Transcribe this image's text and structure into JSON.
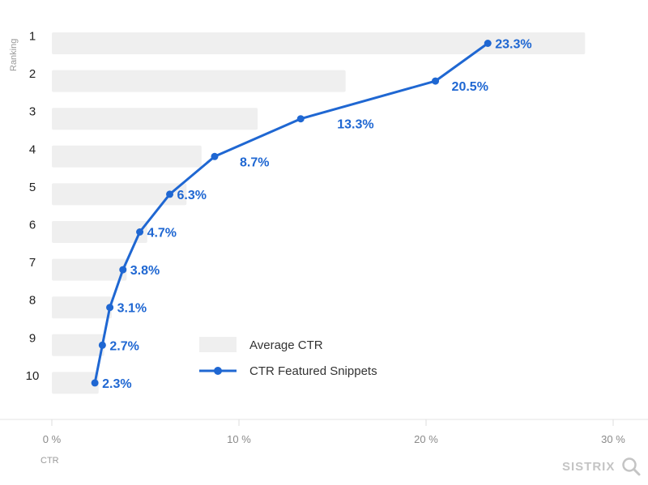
{
  "chart_data": {
    "type": "bar",
    "title": "",
    "ylabel": "Ranking",
    "xlabel": "CTR",
    "categories": [
      "1",
      "2",
      "3",
      "4",
      "5",
      "6",
      "7",
      "8",
      "9",
      "10"
    ],
    "xlim": [
      0,
      30
    ],
    "x_ticks": [
      0,
      10,
      20,
      30
    ],
    "x_tick_labels": [
      "0 %",
      "10 %",
      "20 %",
      "30 %"
    ],
    "series": [
      {
        "name": "Average CTR",
        "type": "bar",
        "color": "#efefef",
        "values": [
          28.5,
          15.7,
          11.0,
          8.0,
          7.2,
          5.1,
          4.0,
          3.2,
          2.8,
          2.5
        ]
      },
      {
        "name": "CTR Featured Snippets",
        "type": "line",
        "color": "#1f67d2",
        "values": [
          23.3,
          20.5,
          13.3,
          8.7,
          6.3,
          4.7,
          3.8,
          3.1,
          2.7,
          2.3
        ],
        "labels": [
          "23.3%",
          "20.5%",
          "13.3%",
          "8.7%",
          "6.3%",
          "4.7%",
          "3.8%",
          "3.1%",
          "2.7%",
          "2.3%"
        ]
      }
    ],
    "legend": "bottom-center"
  },
  "brand": {
    "name": "SISTRIX",
    "icon": "magnifier-icon"
  }
}
